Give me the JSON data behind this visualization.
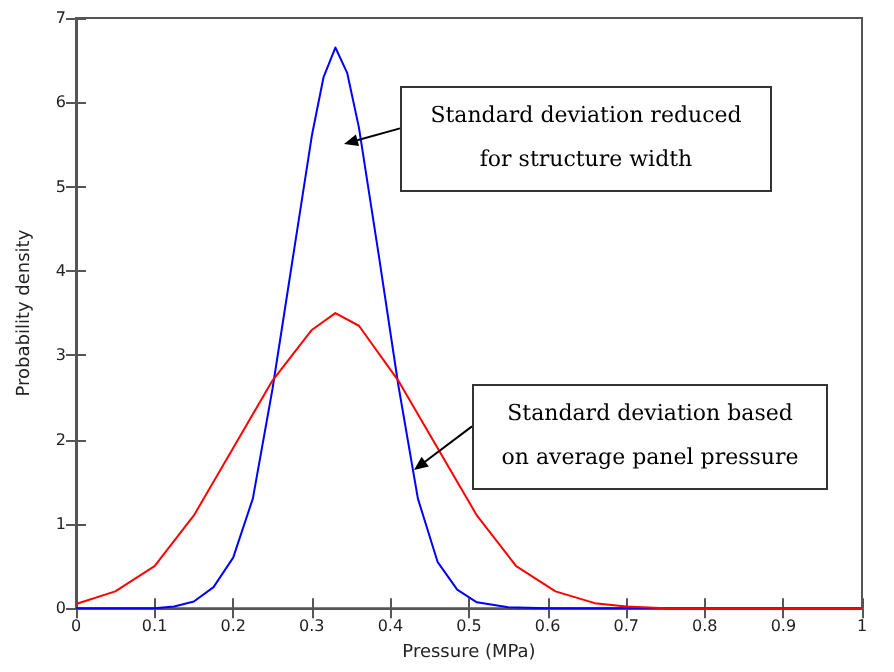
{
  "chart_data": {
    "type": "line",
    "xlabel": "Pressure (MPa)",
    "ylabel": "Probability density",
    "xlim": [
      0,
      1
    ],
    "xticks": [
      0,
      0.1,
      0.2,
      0.3,
      0.4,
      0.5,
      0.6,
      0.7,
      0.8,
      0.9,
      1
    ],
    "ylim": [
      0,
      7
    ],
    "yticks": [
      0,
      1,
      2,
      3,
      4,
      5,
      6,
      7
    ],
    "grid": false,
    "marker": "none",
    "line_style": "solid",
    "series": [
      {
        "color": "#0000ff",
        "x": [
          0,
          0.1,
          0.125,
          0.15,
          0.175,
          0.2,
          0.225,
          0.25,
          0.275,
          0.3,
          0.315,
          0.33,
          0.345,
          0.36,
          0.385,
          0.41,
          0.435,
          0.46,
          0.485,
          0.51,
          0.55,
          0.6,
          1
        ],
        "values": [
          0,
          0,
          0.02,
          0.08,
          0.25,
          0.6,
          1.3,
          2.6,
          4.1,
          5.6,
          6.3,
          6.65,
          6.35,
          5.7,
          4.2,
          2.65,
          1.3,
          0.55,
          0.22,
          0.07,
          0.01,
          0,
          0
        ]
      },
      {
        "color": "#ff0000",
        "x": [
          0,
          0.05,
          0.1,
          0.15,
          0.2,
          0.25,
          0.3,
          0.33,
          0.36,
          0.41,
          0.46,
          0.51,
          0.56,
          0.61,
          0.66,
          0.7,
          0.75,
          1
        ],
        "values": [
          0.05,
          0.2,
          0.5,
          1.1,
          1.9,
          2.7,
          3.3,
          3.5,
          3.35,
          2.7,
          1.9,
          1.1,
          0.5,
          0.2,
          0.06,
          0.02,
          0,
          0
        ]
      }
    ],
    "annotations": [
      "Standard deviation reduced\nfor structure width",
      "Standard deviation based\non average panel pressure"
    ]
  }
}
